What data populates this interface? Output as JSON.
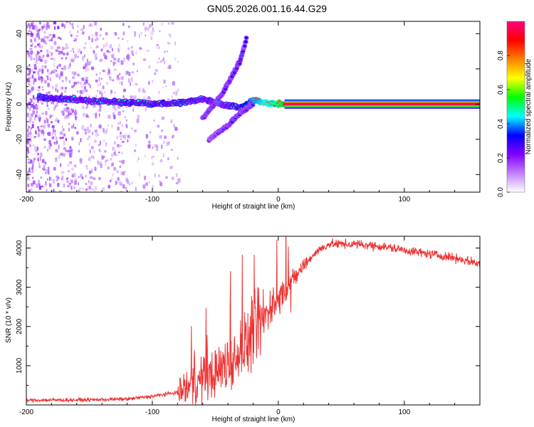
{
  "title": "GN05.2026.001.16.44.G29",
  "chart_data": [
    {
      "type": "heatmap",
      "panel": "spectrogram",
      "xlabel": "Height of straight line (km)",
      "ylabel": "Frequency (Hz)",
      "xlim": [
        -200,
        160
      ],
      "ylim": [
        -50,
        47
      ],
      "x_ticks": [
        -200,
        -100,
        0,
        100
      ],
      "x_tick_labels": [
        "-200",
        "-100",
        "0",
        "100"
      ],
      "y_ticks": [
        -40,
        -20,
        0,
        20,
        40
      ],
      "y_tick_labels": [
        "-40",
        "-20",
        "0",
        "20",
        "40"
      ],
      "colorbar": {
        "label": "Normalized spectral amplitude",
        "range": [
          0,
          1
        ],
        "ticks": [
          0.0,
          0.2,
          0.4,
          0.6,
          0.8
        ],
        "tick_labels": [
          "0.0",
          "0.2",
          "0.4",
          "0.6",
          "0.8"
        ],
        "colors": [
          "#ffffff",
          "#c080ff",
          "#8000ff",
          "#0000ff",
          "#00ffff",
          "#00ff00",
          "#ffff00",
          "#ff8000",
          "#ff0000",
          "#ff0080"
        ]
      },
      "features": [
        {
          "name": "main tone",
          "x": [
            -190,
            -150,
            -120,
            -95,
            -75,
            -60,
            -45,
            -30,
            -20,
            -10,
            0,
            5,
            50,
            100,
            160
          ],
          "y": [
            4,
            2,
            1,
            0,
            1,
            3,
            0,
            -2,
            2,
            1,
            0,
            0,
            0,
            0,
            0
          ],
          "amplitude": [
            0.45,
            0.4,
            0.45,
            0.45,
            0.45,
            0.4,
            0.35,
            0.5,
            0.7,
            0.8,
            0.9,
            1.0,
            1.0,
            1.0,
            1.0
          ]
        },
        {
          "name": "upper branch",
          "x": [
            -60,
            -45,
            -30,
            -25
          ],
          "y": [
            -8,
            5,
            25,
            38
          ],
          "amplitude": [
            0.3,
            0.3,
            0.3,
            0.25
          ]
        },
        {
          "name": "lower branch",
          "x": [
            -55,
            -40,
            -30,
            -20
          ],
          "y": [
            -20,
            -12,
            -5,
            0
          ],
          "amplitude": [
            0.25,
            0.3,
            0.3,
            0.3
          ]
        }
      ],
      "noise_region": {
        "x_range": [
          -200,
          -80
        ],
        "amplitude": [
          0.05,
          0.2
        ]
      }
    },
    {
      "type": "line",
      "panel": "snr",
      "xlabel": "Height of straight line (km)",
      "ylabel": "SNR (10 * v/v)",
      "xlim": [
        -200,
        160
      ],
      "ylim": [
        0,
        4300
      ],
      "x_ticks": [
        -200,
        -100,
        0,
        100
      ],
      "x_tick_labels": [
        "-200",
        "-100",
        "0",
        "100"
      ],
      "y_ticks": [
        1000,
        2000,
        3000,
        4000
      ],
      "y_tick_labels": [
        "1000",
        "2000",
        "3000",
        "4000"
      ],
      "series": [
        {
          "name": "SNR",
          "color": "#ee3333",
          "x": [
            -200,
            -150,
            -120,
            -100,
            -80,
            -65,
            -50,
            -40,
            -30,
            -20,
            -10,
            0,
            10,
            20,
            30,
            40,
            60,
            80,
            100,
            120,
            140,
            160
          ],
          "y": [
            120,
            130,
            150,
            220,
            320,
            550,
            850,
            1050,
            1400,
            1800,
            2300,
            2700,
            3100,
            3550,
            3900,
            4100,
            4100,
            4050,
            3950,
            3850,
            3750,
            3600
          ]
        }
      ]
    }
  ]
}
